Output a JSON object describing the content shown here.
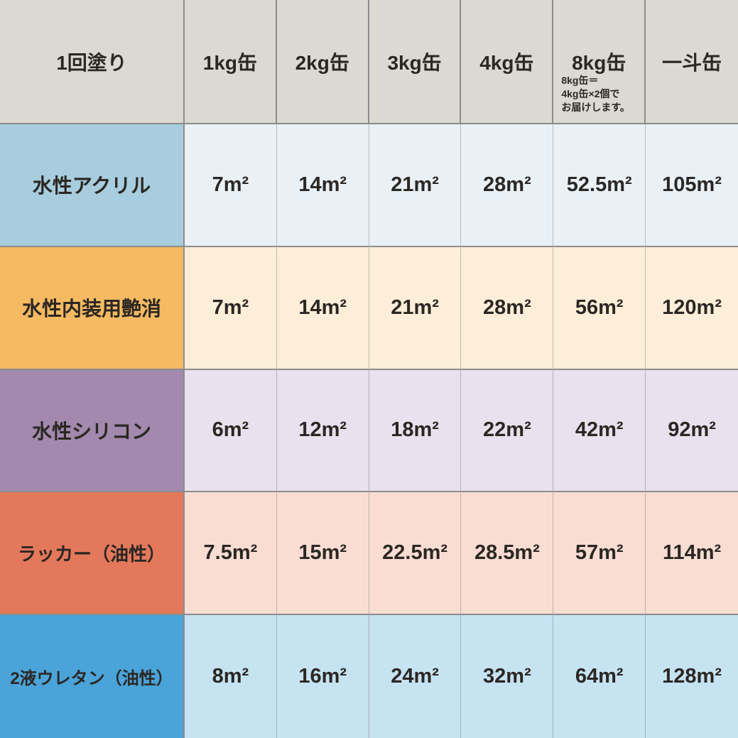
{
  "header": {
    "corner_label": "1回塗り",
    "columns": [
      "1kg缶",
      "2kg缶",
      "3kg缶",
      "4kg缶",
      "8kg缶",
      "一斗缶"
    ],
    "note_lines": [
      "8kg缶＝",
      "4kg缶×2個で",
      "お届けします。"
    ]
  },
  "rows": [
    {
      "label": "水性アクリル",
      "values": [
        "7m²",
        "14m²",
        "21m²",
        "28m²",
        "52.5m²",
        "105m²"
      ]
    },
    {
      "label": "水性内装用艶消",
      "values": [
        "7m²",
        "14m²",
        "21m²",
        "28m²",
        "56m²",
        "120m²"
      ]
    },
    {
      "label": "水性シリコン",
      "values": [
        "6m²",
        "12m²",
        "18m²",
        "22m²",
        "42m²",
        "92m²"
      ]
    },
    {
      "label": "ラッカー（油性）",
      "values": [
        "7.5m²",
        "15m²",
        "22.5m²",
        "28.5m²",
        "57m²",
        "114m²"
      ]
    },
    {
      "label": "2液ウレタン（油性）",
      "values": [
        "8m²",
        "16m²",
        "24m²",
        "32m²",
        "64m²",
        "128m²"
      ]
    }
  ],
  "colors": {
    "header_bg": "#dcd9d3",
    "grid_line": "#8c8c8c",
    "text": "#2b2723",
    "row_label_bg": [
      "#a7cdde",
      "#f5ba62",
      "#a289ad",
      "#e3785b",
      "#4aa4d9"
    ],
    "row_cell_bg": [
      "#e9f1f7",
      "#fdeed9",
      "#e9e1ed",
      "#f9ddd3",
      "#c6e3f2"
    ]
  },
  "chart_data": {
    "type": "table",
    "title": "1回塗り（塗り面積早見表）",
    "columns": [
      "1kg缶",
      "2kg缶",
      "3kg缶",
      "4kg缶",
      "8kg缶",
      "一斗缶"
    ],
    "unit": "m²",
    "rows": [
      {
        "name": "水性アクリル",
        "values": [
          7,
          14,
          21,
          28,
          52.5,
          105
        ]
      },
      {
        "name": "水性内装用艶消",
        "values": [
          7,
          14,
          21,
          28,
          56,
          120
        ]
      },
      {
        "name": "水性シリコン",
        "values": [
          6,
          12,
          18,
          22,
          42,
          92
        ]
      },
      {
        "name": "ラッカー（油性）",
        "values": [
          7.5,
          15,
          22.5,
          28.5,
          57,
          114
        ]
      },
      {
        "name": "2液ウレタン（油性）",
        "values": [
          8,
          16,
          24,
          32,
          64,
          128
        ]
      }
    ],
    "note": "8kg缶＝4kg缶×2個でお届けします。"
  }
}
